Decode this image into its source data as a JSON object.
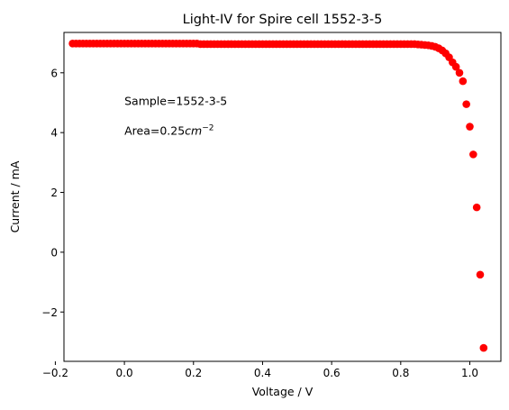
{
  "chart_data": {
    "type": "scatter",
    "title": "Light-IV for Spire cell 1552-3-5",
    "xlabel": "Voltage / V",
    "ylabel": "Current / mA",
    "xlim": [
      -0.175,
      1.09
    ],
    "ylim": [
      -3.65,
      7.35
    ],
    "xticks": [
      -0.2,
      0.0,
      0.2,
      0.4,
      0.6,
      0.8,
      1.0
    ],
    "xtick_labels": [
      "−0.2",
      "0.0",
      "0.2",
      "0.4",
      "0.6",
      "0.8",
      "1.0"
    ],
    "yticks": [
      -2,
      0,
      2,
      4,
      6
    ],
    "ytick_labels": [
      "−2",
      "0",
      "2",
      "4",
      "6"
    ],
    "grid": false,
    "marker_color": "#ff0000",
    "annotations": [
      {
        "text": "Sample=1552-3-5",
        "x": 0.0,
        "y": 5.05
      },
      {
        "text": "Area=0.25",
        "math": "cm",
        "sup": "−2",
        "x": 0.0,
        "y": 4.05
      }
    ],
    "series": [
      {
        "x": [
          -0.15,
          -0.14,
          -0.13,
          -0.12,
          -0.11,
          -0.1,
          -0.09,
          -0.08,
          -0.07,
          -0.06,
          -0.05,
          -0.04,
          -0.03,
          -0.02,
          -0.01,
          0.0,
          0.01,
          0.02,
          0.03,
          0.04,
          0.05,
          0.06,
          0.07,
          0.08,
          0.09,
          0.1,
          0.11,
          0.12,
          0.13,
          0.14,
          0.15,
          0.16,
          0.17,
          0.18,
          0.19,
          0.2,
          0.21,
          0.22,
          0.23,
          0.24,
          0.25,
          0.26,
          0.27,
          0.28,
          0.29,
          0.3,
          0.31,
          0.32,
          0.33,
          0.34,
          0.35,
          0.36,
          0.37,
          0.38,
          0.39,
          0.4,
          0.41,
          0.42,
          0.43,
          0.44,
          0.45,
          0.46,
          0.47,
          0.48,
          0.49,
          0.5,
          0.51,
          0.52,
          0.53,
          0.54,
          0.55,
          0.56,
          0.57,
          0.58,
          0.59,
          0.6,
          0.61,
          0.62,
          0.63,
          0.64,
          0.65,
          0.66,
          0.67,
          0.68,
          0.69,
          0.7,
          0.71,
          0.72,
          0.73,
          0.74,
          0.75,
          0.76,
          0.77,
          0.78,
          0.79,
          0.8,
          0.81,
          0.82,
          0.83,
          0.84,
          0.85,
          0.86,
          0.87,
          0.88,
          0.89,
          0.9,
          0.91,
          0.92,
          0.93,
          0.94,
          0.95,
          0.96,
          0.97,
          0.98,
          0.99,
          1.0,
          1.01,
          1.02,
          1.03,
          1.04
        ],
        "y": [
          6.98,
          6.98,
          6.98,
          6.98,
          6.98,
          6.98,
          6.98,
          6.98,
          6.98,
          6.98,
          6.98,
          6.98,
          6.98,
          6.98,
          6.98,
          6.98,
          6.98,
          6.98,
          6.98,
          6.98,
          6.98,
          6.98,
          6.98,
          6.98,
          6.98,
          6.98,
          6.98,
          6.98,
          6.98,
          6.98,
          6.98,
          6.98,
          6.98,
          6.98,
          6.98,
          6.98,
          6.98,
          6.96,
          6.96,
          6.96,
          6.96,
          6.96,
          6.96,
          6.96,
          6.96,
          6.96,
          6.96,
          6.96,
          6.96,
          6.96,
          6.96,
          6.96,
          6.96,
          6.96,
          6.96,
          6.96,
          6.96,
          6.96,
          6.96,
          6.96,
          6.96,
          6.96,
          6.96,
          6.96,
          6.96,
          6.96,
          6.96,
          6.96,
          6.96,
          6.96,
          6.96,
          6.96,
          6.96,
          6.96,
          6.96,
          6.96,
          6.96,
          6.96,
          6.96,
          6.96,
          6.96,
          6.96,
          6.96,
          6.96,
          6.96,
          6.96,
          6.96,
          6.96,
          6.96,
          6.96,
          6.96,
          6.96,
          6.96,
          6.96,
          6.96,
          6.96,
          6.96,
          6.96,
          6.96,
          6.96,
          6.95,
          6.94,
          6.93,
          6.92,
          6.9,
          6.87,
          6.82,
          6.75,
          6.65,
          6.52,
          6.35,
          6.2,
          6.0,
          5.72,
          4.95,
          4.2,
          3.27,
          1.5,
          -0.75,
          -3.2
        ]
      }
    ]
  }
}
